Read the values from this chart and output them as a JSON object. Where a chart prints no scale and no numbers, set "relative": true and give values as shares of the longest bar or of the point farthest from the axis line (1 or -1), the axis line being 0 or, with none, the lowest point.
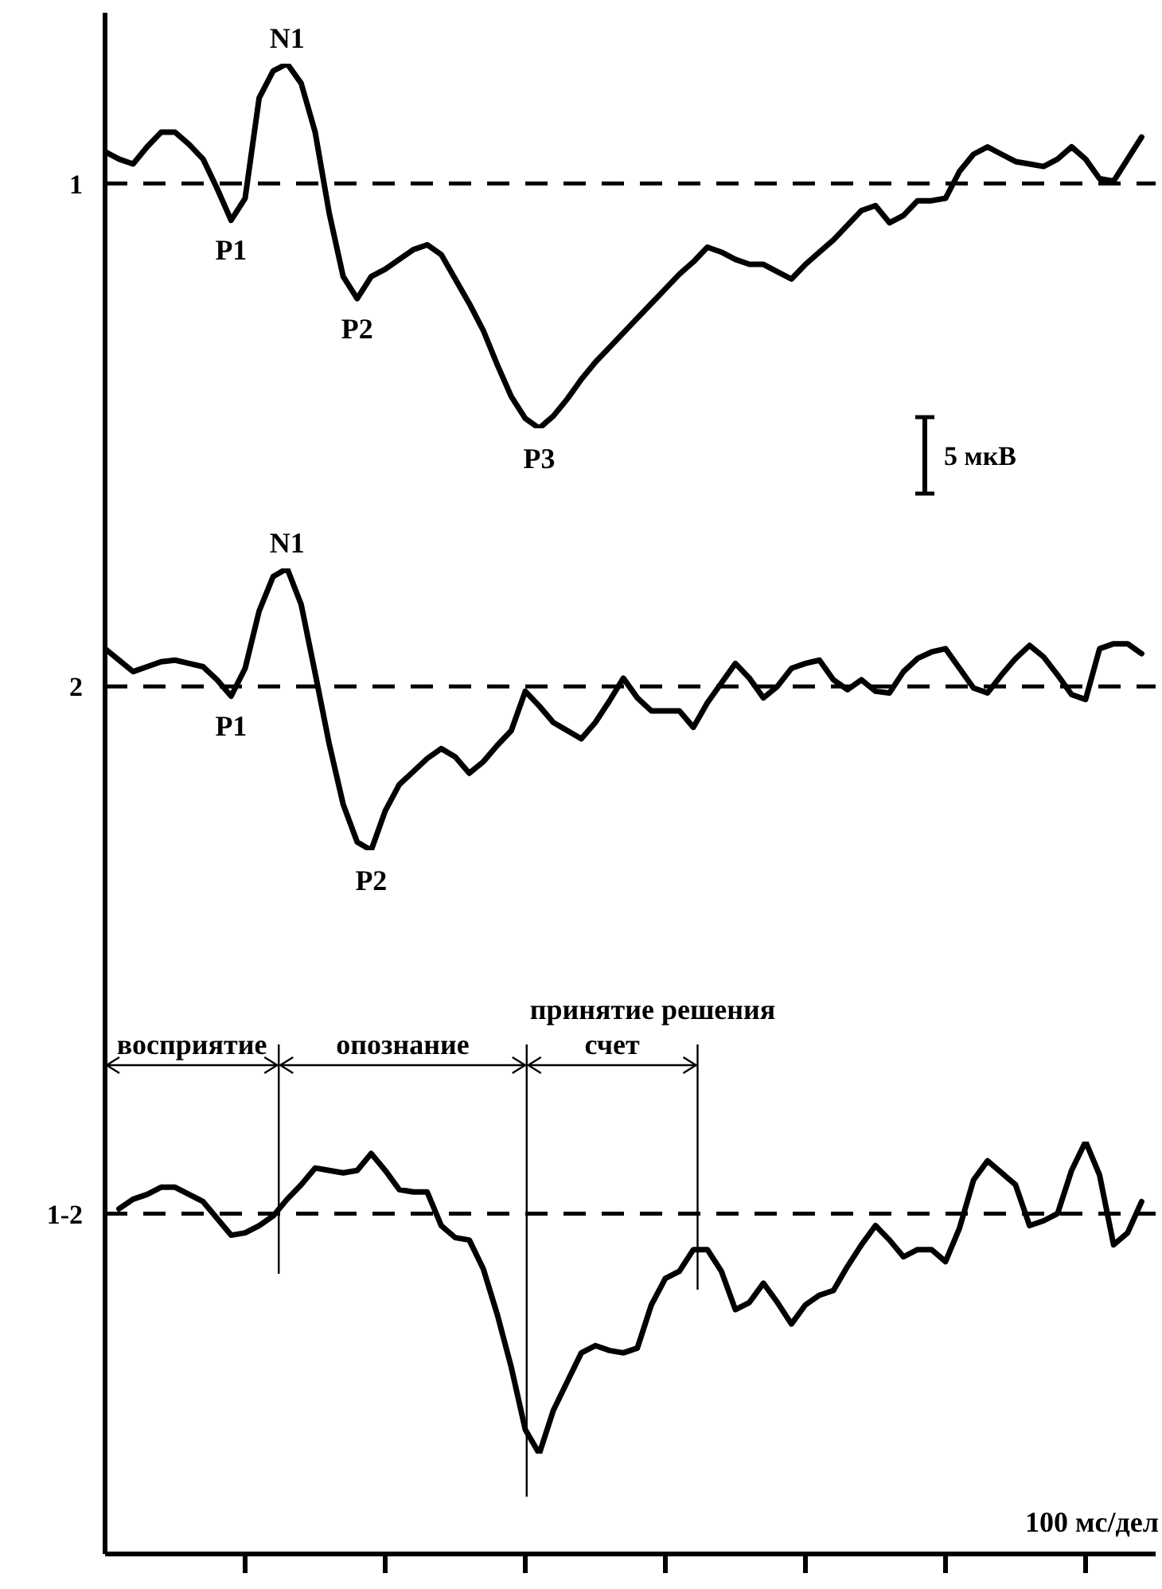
{
  "chart_data": [
    {
      "type": "line",
      "relative": true,
      "ylabel": "1",
      "color": "#000000",
      "marker": "none",
      "tick_labels": false,
      "categories": [
        null,
        null,
        null,
        null,
        null,
        null,
        null,
        null,
        null,
        null,
        null,
        null,
        null,
        null,
        null,
        null,
        null,
        null,
        null,
        null,
        null,
        null,
        null,
        null,
        null,
        null,
        null,
        null,
        null,
        null,
        null,
        null,
        null,
        null,
        null,
        null,
        null,
        null,
        null,
        null,
        null,
        null,
        null,
        null,
        null,
        null,
        null,
        null,
        null,
        null,
        null,
        null,
        null,
        null,
        null,
        null,
        null,
        null,
        null,
        null,
        null,
        null,
        null,
        null,
        null,
        null,
        null,
        null,
        null,
        null,
        null,
        null,
        null,
        null,
        null
      ],
      "values": [
        0.13,
        0.1,
        0.08,
        0.15,
        0.21,
        0.21,
        0.16,
        0.1,
        -0.02,
        -0.15,
        -0.06,
        0.35,
        0.46,
        0.49,
        0.41,
        0.21,
        -0.12,
        -0.38,
        -0.47,
        -0.38,
        -0.35,
        -0.31,
        -0.27,
        -0.25,
        -0.29,
        -0.39,
        -0.49,
        -0.6,
        -0.74,
        -0.87,
        -0.96,
        -1.0,
        -0.95,
        -0.88,
        -0.8,
        -0.73,
        -0.67,
        -0.61,
        -0.55,
        -0.49,
        -0.43,
        -0.37,
        -0.32,
        -0.26,
        -0.28,
        -0.31,
        -0.33,
        -0.33,
        -0.36,
        -0.39,
        -0.33,
        -0.28,
        -0.23,
        -0.17,
        -0.11,
        -0.09,
        -0.16,
        -0.13,
        -0.07,
        -0.07,
        -0.06,
        0.05,
        0.12,
        0.15,
        0.12,
        0.09,
        0.08,
        0.07,
        0.1,
        0.15,
        0.1,
        0.02,
        0.01,
        0.1,
        0.19
      ],
      "ref_lines": [
        {
          "axis": "y",
          "value": 0,
          "line_style": "dashed"
        }
      ],
      "annotations": [
        {
          "text": "P1",
          "y": -0.15
        },
        {
          "text": "N1",
          "y": 0.49
        },
        {
          "text": "P2",
          "y": -0.47
        },
        {
          "text": "P3",
          "y": -1.0
        },
        "5 мкВ"
      ]
    },
    {
      "type": "line",
      "relative": true,
      "ylabel": "2",
      "color": "#000000",
      "marker": "none",
      "tick_labels": false,
      "categories": [
        null,
        null,
        null,
        null,
        null,
        null,
        null,
        null,
        null,
        null,
        null,
        null,
        null,
        null,
        null,
        null,
        null,
        null,
        null,
        null,
        null,
        null,
        null,
        null,
        null,
        null,
        null,
        null,
        null,
        null,
        null,
        null,
        null,
        null,
        null,
        null,
        null,
        null,
        null,
        null,
        null,
        null,
        null,
        null,
        null,
        null,
        null,
        null,
        null,
        null,
        null,
        null,
        null,
        null,
        null,
        null,
        null,
        null,
        null,
        null,
        null,
        null,
        null,
        null,
        null,
        null,
        null,
        null,
        null,
        null,
        null,
        null,
        null,
        null,
        null
      ],
      "values": [
        0.23,
        0.16,
        0.09,
        0.12,
        0.15,
        0.16,
        0.14,
        0.12,
        0.04,
        -0.06,
        0.11,
        0.46,
        0.67,
        0.72,
        0.5,
        0.08,
        -0.35,
        -0.72,
        -0.95,
        -1.0,
        -0.76,
        -0.6,
        -0.52,
        -0.44,
        -0.38,
        -0.43,
        -0.53,
        -0.46,
        -0.36,
        -0.27,
        -0.03,
        -0.12,
        -0.22,
        -0.27,
        -0.32,
        -0.22,
        -0.09,
        0.05,
        -0.07,
        -0.15,
        -0.15,
        -0.15,
        -0.25,
        -0.1,
        0.02,
        0.14,
        0.05,
        -0.07,
        0.0,
        0.11,
        0.14,
        0.16,
        0.04,
        -0.02,
        0.04,
        -0.03,
        -0.04,
        0.09,
        0.17,
        0.21,
        0.23,
        0.11,
        -0.01,
        -0.04,
        0.07,
        0.17,
        0.25,
        0.18,
        0.07,
        -0.05,
        -0.08,
        0.23,
        0.26,
        0.26,
        0.2
      ],
      "ref_lines": [
        {
          "axis": "y",
          "value": 0,
          "line_style": "dashed"
        }
      ],
      "annotations": [
        {
          "text": "P1",
          "y": -0.06
        },
        {
          "text": "N1",
          "y": 0.72
        },
        {
          "text": "P2",
          "y": -1.0
        }
      ]
    },
    {
      "type": "line",
      "relative": true,
      "ylabel": "1-2",
      "xlabel": "100 мс/дел",
      "color": "#000000",
      "marker": "none",
      "tick_labels": false,
      "categories": [
        null,
        null,
        null,
        null,
        null,
        null,
        null,
        null,
        null,
        null,
        null,
        null,
        null,
        null,
        null,
        null,
        null,
        null,
        null,
        null,
        null,
        null,
        null,
        null,
        null,
        null,
        null,
        null,
        null,
        null,
        null,
        null,
        null,
        null,
        null,
        null,
        null,
        null,
        null,
        null,
        null,
        null,
        null,
        null,
        null,
        null,
        null,
        null,
        null,
        null,
        null,
        null,
        null,
        null,
        null,
        null,
        null,
        null,
        null,
        null,
        null,
        null,
        null,
        null,
        null,
        null,
        null,
        null,
        null,
        null,
        null,
        null,
        null,
        null,
        null
      ],
      "values": [
        null,
        0.02,
        0.06,
        0.08,
        0.11,
        0.11,
        0.08,
        0.05,
        -0.02,
        -0.09,
        -0.08,
        -0.05,
        -0.01,
        0.06,
        0.12,
        0.19,
        0.18,
        0.17,
        0.18,
        0.25,
        0.18,
        0.1,
        0.09,
        0.09,
        -0.05,
        -0.1,
        -0.11,
        -0.23,
        -0.42,
        -0.64,
        -0.9,
        -1.0,
        -0.82,
        -0.7,
        -0.58,
        -0.55,
        -0.57,
        -0.58,
        -0.56,
        -0.38,
        -0.27,
        -0.24,
        -0.15,
        -0.15,
        -0.24,
        -0.4,
        -0.37,
        -0.29,
        -0.37,
        -0.46,
        -0.38,
        -0.34,
        -0.32,
        -0.22,
        -0.13,
        -0.05,
        -0.11,
        -0.18,
        -0.15,
        -0.15,
        -0.2,
        -0.06,
        0.14,
        0.22,
        0.17,
        0.12,
        -0.05,
        -0.03,
        0.0,
        0.18,
        0.3,
        0.16,
        -0.13,
        -0.08,
        0.05
      ],
      "ref_lines": [
        {
          "axis": "y",
          "value": 0,
          "line_style": "dashed"
        }
      ],
      "annotations": [
        "восприятие",
        "опознание",
        "счет",
        "принятие решения"
      ]
    }
  ]
}
